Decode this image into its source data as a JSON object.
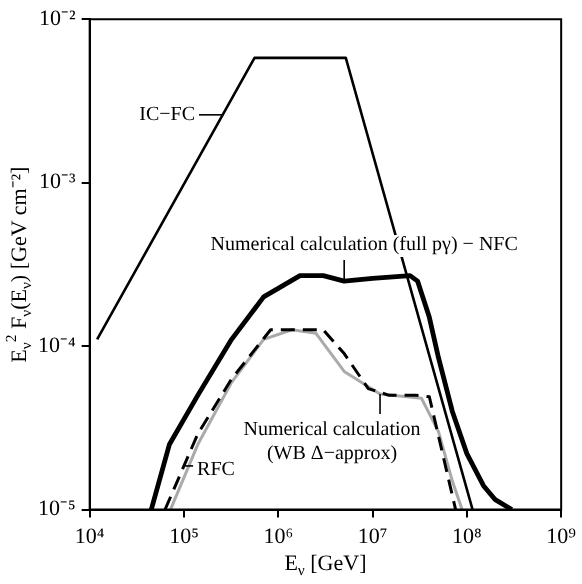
{
  "chart_data": {
    "type": "line",
    "xlabel": "E$_{ν}$ [GeV]",
    "ylabel": "E$_{ν}$$^{2}$ F$_{ν}$(E$_{ν}$) [GeV cm⁻²]",
    "log": "xy",
    "grid": false,
    "legend": false,
    "marker": "none",
    "xlim": [
      10000,
      1000000000
    ],
    "xticks": [
      {
        "value": 10000,
        "label": "10⁴"
      },
      {
        "value": 100000,
        "label": "10⁵"
      },
      {
        "value": 1000000,
        "label": "10⁶"
      },
      {
        "value": 10000000,
        "label": "10⁷"
      },
      {
        "value": 100000000,
        "label": "10⁸"
      },
      {
        "value": 1000000000,
        "label": "10⁹"
      }
    ],
    "ylim": [
      1e-05,
      0.01
    ],
    "yticks": [
      {
        "value": 1e-05,
        "label": "10⁻⁵"
      },
      {
        "value": 0.0001,
        "label": "10⁻⁴"
      },
      {
        "value": 0.001,
        "label": "10⁻³"
      },
      {
        "value": 0.01,
        "label": "10⁻²"
      }
    ],
    "series": [
      {
        "color": "#000000",
        "line_style": "solid",
        "x": [
          12000,
          560000,
          5200000,
          115000000
        ],
        "values": [
          0.00011,
          0.0058,
          0.0058,
          1e-05
        ]
      },
      {
        "color": "#000000",
        "line_style": "solid",
        "x": [
          45000,
          70000,
          140000,
          320000,
          700000,
          1700000,
          3000000,
          5000000,
          10000000,
          25000000,
          30000000,
          40000000,
          50000000,
          70000000,
          100000000,
          150000000,
          200000000,
          300000000
        ],
        "values": [
          1e-05,
          2.5e-05,
          5e-05,
          0.00011,
          0.0002,
          0.00027,
          0.00027,
          0.00025,
          0.00026,
          0.00027,
          0.00025,
          0.00015,
          8.5e-05,
          4e-05,
          2.2e-05,
          1.4e-05,
          1.15e-05,
          1e-05
        ]
      },
      {
        "color": "#000000",
        "line_style": "dashed",
        "x": [
          63000,
          140000,
          320000,
          830000,
          3000000,
          5000000,
          9000000,
          15000000,
          29000000,
          40000000,
          76000000
        ],
        "values": [
          1e-05,
          2.9e-05,
          6.3e-05,
          0.000126,
          0.000126,
          9e-05,
          5.5e-05,
          5e-05,
          5e-05,
          4.9e-05,
          1e-05
        ]
      },
      {
        "color": "#aaaaaa",
        "line_style": "solid",
        "x": [
          72000,
          140000,
          320000,
          700000,
          1400000,
          2500000,
          5000000,
          12000000,
          33000000,
          50000000,
          70000000,
          89000000
        ],
        "values": [
          1e-05,
          2.5e-05,
          6e-05,
          0.00011,
          0.000126,
          0.00012,
          7e-05,
          5.1e-05,
          4.8e-05,
          3e-05,
          1.5e-05,
          1e-05
        ]
      }
    ],
    "annotations": [
      {
        "text": "IC−FC",
        "x": 260000,
        "y": 0.0026
      },
      {
        "text": "Numerical calculation (full pγ) − NFC",
        "x": 5000000,
        "y": 0.00025
      },
      {
        "text": "Numerical calculation\n(WB Δ−approx)",
        "x": 12000000,
        "y": 5.1e-05
      },
      {
        "text": "RFC",
        "x": 100000,
        "y": 1.85e-05
      }
    ]
  }
}
